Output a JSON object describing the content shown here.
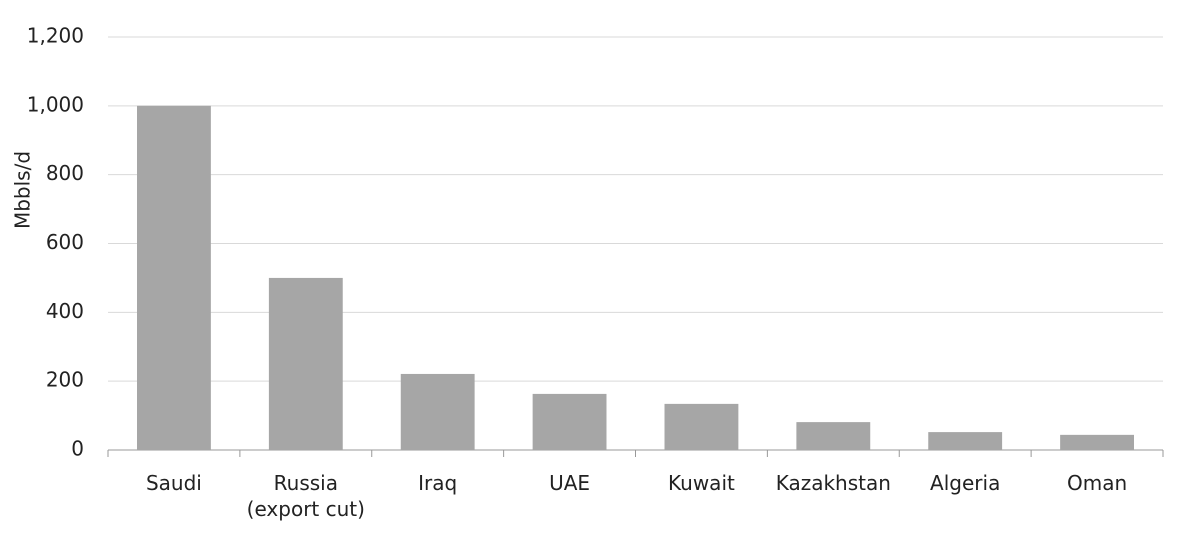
{
  "chart_data": {
    "type": "bar",
    "y_label": "Mbbls/d",
    "categories": [
      "Saudi",
      "Russia\n(export cut)",
      "Iraq",
      "UAE",
      "Kuwait",
      "Kazakhstan",
      "Algeria",
      "Oman"
    ],
    "values": [
      1000,
      500,
      221,
      163,
      134,
      81,
      52,
      44
    ],
    "color": "#a6a6a6",
    "ylim": [
      0,
      1200
    ],
    "yticks": [
      0,
      200,
      400,
      600,
      800,
      {
        "value": 1000,
        "label": "1,000"
      },
      {
        "value": 1200,
        "label": "1,200"
      }
    ],
    "grid": true
  }
}
